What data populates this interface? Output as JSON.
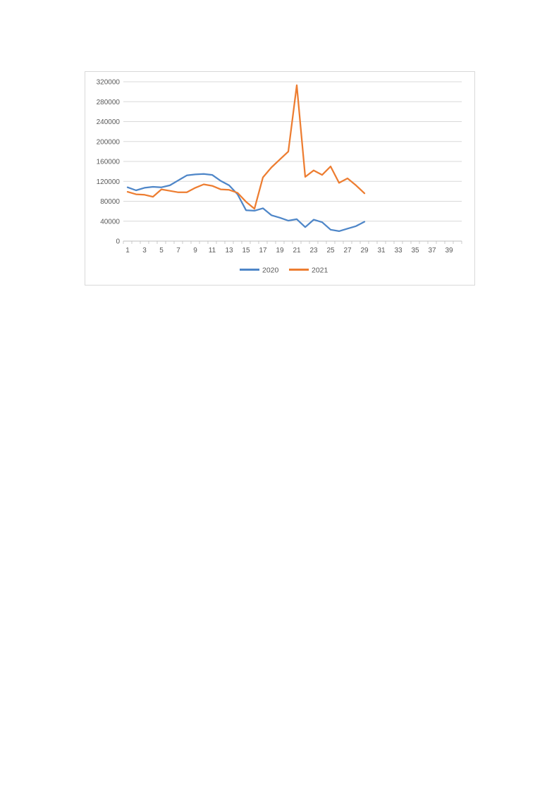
{
  "page": {
    "background_color": "#ffffff"
  },
  "chart": {
    "frame_border_color": "#D9D9D9",
    "plot_background_color": "#ffffff",
    "gridline_color": "#D9D9D9",
    "axis_line_color": "#BFBFBF",
    "tick_color": "#BFBFBF",
    "label_text_color": "#595959"
  },
  "chart_data": {
    "type": "line",
    "title": "",
    "xlabel": "",
    "ylabel": "",
    "grid": true,
    "legend_position": "bottom",
    "ylim": [
      0,
      320000
    ],
    "ytick_step": 40000,
    "ytick_labels": [
      "0",
      "40000",
      "80000",
      "120000",
      "160000",
      "200000",
      "240000",
      "280000",
      "320000"
    ],
    "x_axis_total_slots": 40,
    "xtick_labels": [
      "1",
      "3",
      "5",
      "7",
      "9",
      "11",
      "13",
      "15",
      "17",
      "19",
      "21",
      "23",
      "25",
      "27",
      "29",
      "31",
      "33",
      "35",
      "37",
      "39"
    ],
    "x": [
      1,
      2,
      3,
      4,
      5,
      6,
      7,
      8,
      9,
      10,
      11,
      12,
      13,
      14,
      15,
      16,
      17,
      18,
      19,
      20,
      21,
      22,
      23,
      24,
      25,
      26,
      27,
      28,
      29
    ],
    "series": [
      {
        "name": "2020",
        "color": "#4E86C8",
        "values": [
          108000,
          102000,
          107000,
          109000,
          108000,
          112000,
          122000,
          132000,
          134000,
          135000,
          133000,
          121000,
          112000,
          94000,
          62000,
          61000,
          66000,
          52000,
          47000,
          41000,
          44000,
          28000,
          43000,
          38000,
          23000,
          20000,
          25000,
          30000,
          39000
        ]
      },
      {
        "name": "2021",
        "color": "#ED7D31",
        "values": [
          99000,
          94000,
          93000,
          89000,
          104000,
          101000,
          98000,
          98000,
          107000,
          114000,
          111000,
          104000,
          103000,
          97000,
          79000,
          65000,
          128000,
          148000,
          164000,
          180000,
          313000,
          129000,
          142000,
          133000,
          150000,
          117000,
          126000,
          112000,
          96000
        ]
      }
    ]
  }
}
